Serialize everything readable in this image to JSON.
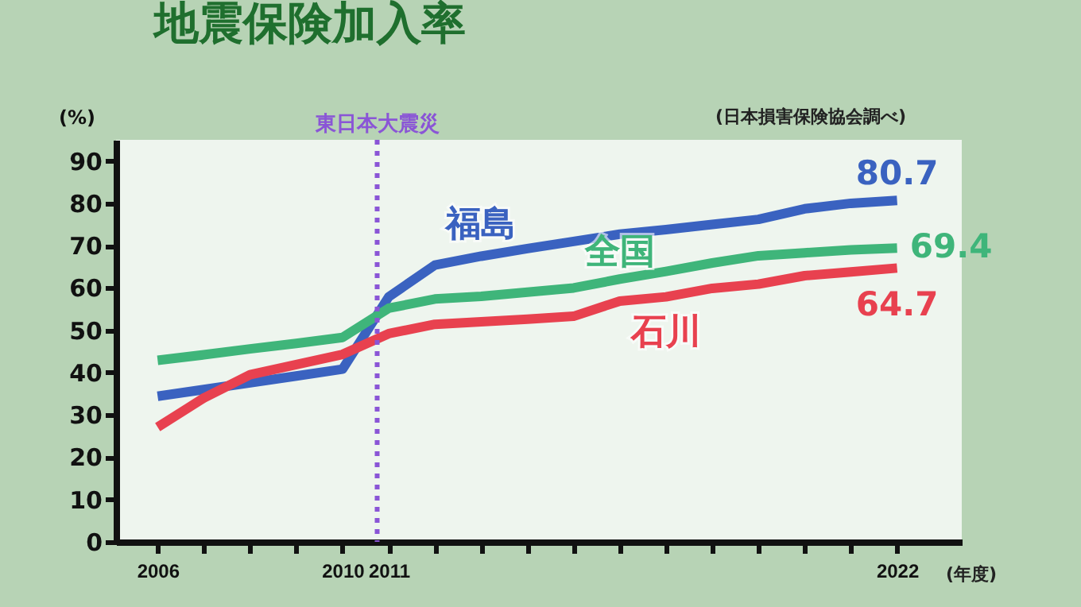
{
  "chart_data": {
    "type": "line",
    "title": "地震保険加入率",
    "ylabel": "(%)",
    "annotations": [
      "(日本損害保険協会調べ)",
      "(年度)"
    ],
    "x": [
      2006,
      2007,
      2008,
      2009,
      2010,
      2011,
      2012,
      2013,
      2014,
      2015,
      2016,
      2017,
      2018,
      2019,
      2020,
      2021,
      2022
    ],
    "series": [
      {
        "name": "福島",
        "color": "#3a62c0",
        "values": [
          34.4,
          36.0,
          37.6,
          39.2,
          40.8,
          57.9,
          65.4,
          67.5,
          69.3,
          71.0,
          72.7,
          73.8,
          75.0,
          76.2,
          78.7,
          80.0,
          80.7
        ],
        "value_labels": [
          null,
          null,
          null,
          null,
          null,
          null,
          null,
          null,
          null,
          null,
          null,
          null,
          null,
          null,
          null,
          null,
          "80.7"
        ]
      },
      {
        "name": "全国",
        "color": "#3fb57a",
        "values": [
          42.9,
          44.2,
          45.6,
          46.9,
          48.3,
          55.2,
          57.4,
          58.0,
          59.0,
          60.0,
          62.1,
          63.9,
          65.9,
          67.6,
          68.3,
          69.0,
          69.4
        ],
        "value_labels": [
          null,
          null,
          null,
          null,
          null,
          null,
          null,
          null,
          null,
          null,
          null,
          null,
          null,
          null,
          null,
          null,
          "69.4"
        ]
      },
      {
        "name": "石川",
        "color": "#e8414f",
        "values": [
          27.1,
          34.0,
          39.5,
          41.9,
          44.3,
          49.2,
          51.4,
          52.0,
          52.6,
          53.3,
          56.9,
          57.9,
          59.9,
          60.9,
          62.9,
          63.8,
          64.7
        ],
        "value_labels": [
          null,
          null,
          null,
          null,
          null,
          null,
          null,
          null,
          null,
          null,
          null,
          null,
          null,
          null,
          null,
          null,
          "64.7"
        ]
      }
    ],
    "xlim": [
      2005.1,
      2023.4
    ],
    "xticks": [
      2006,
      {
        "value": 2007,
        "label": null
      },
      {
        "value": 2008,
        "label": null
      },
      {
        "value": 2009,
        "label": null
      },
      2010,
      2011,
      {
        "value": 2012,
        "label": null
      },
      {
        "value": 2013,
        "label": null
      },
      {
        "value": 2014,
        "label": null
      },
      {
        "value": 2015,
        "label": null
      },
      {
        "value": 2016,
        "label": null
      },
      {
        "value": 2017,
        "label": null
      },
      {
        "value": 2018,
        "label": null
      },
      {
        "value": 2019,
        "label": null
      },
      {
        "value": 2020,
        "label": null
      },
      {
        "value": 2021,
        "label": null
      },
      2022
    ],
    "ylim": [
      0,
      95
    ],
    "yticks": [
      0,
      10,
      20,
      30,
      40,
      50,
      60,
      70,
      80,
      90
    ],
    "ref_lines": [
      {
        "axis": "x",
        "value": 2010.75,
        "label": "東日本大震災",
        "color": "#8a55d6",
        "line_style": "dotted"
      }
    ],
    "grid": false,
    "legend": false,
    "marker": "none",
    "line_style": "solid"
  }
}
